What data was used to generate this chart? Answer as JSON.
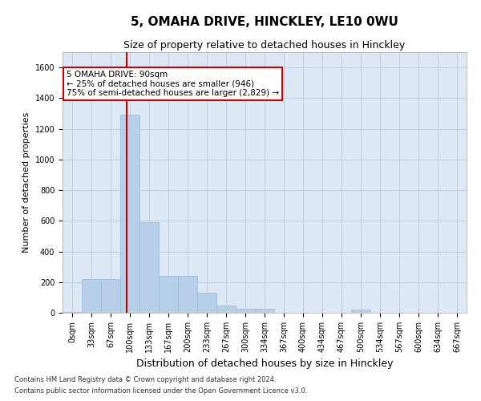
{
  "title": "5, OMAHA DRIVE, HINCKLEY, LE10 0WU",
  "subtitle": "Size of property relative to detached houses in Hinckley",
  "xlabel": "Distribution of detached houses by size in Hinckley",
  "ylabel": "Number of detached properties",
  "bar_color": "#b8cfe8",
  "bar_edge_color": "#9ab8d8",
  "background_color": "#ffffff",
  "plot_bg_color": "#dce8f4",
  "grid_color": "#c0cfe0",
  "categories": [
    "0sqm",
    "33sqm",
    "67sqm",
    "100sqm",
    "133sqm",
    "167sqm",
    "200sqm",
    "233sqm",
    "267sqm",
    "300sqm",
    "334sqm",
    "367sqm",
    "400sqm",
    "434sqm",
    "467sqm",
    "500sqm",
    "534sqm",
    "567sqm",
    "600sqm",
    "634sqm",
    "667sqm"
  ],
  "values": [
    5,
    220,
    220,
    1290,
    590,
    240,
    240,
    130,
    45,
    25,
    25,
    0,
    0,
    0,
    0,
    20,
    0,
    0,
    0,
    0,
    0
  ],
  "ylim": [
    0,
    1700
  ],
  "yticks": [
    0,
    200,
    400,
    600,
    800,
    1000,
    1200,
    1400,
    1600
  ],
  "property_line_x": 2.82,
  "annotation_text": "5 OMAHA DRIVE: 90sqm\n← 25% of detached houses are smaller (946)\n75% of semi-detached houses are larger (2,829) →",
  "annotation_box_color": "#ffffff",
  "annotation_box_edge": "#cc0000",
  "vline_color": "#cc0000",
  "footer_line1": "Contains HM Land Registry data © Crown copyright and database right 2024.",
  "footer_line2": "Contains public sector information licensed under the Open Government Licence v3.0.",
  "title_fontsize": 11,
  "subtitle_fontsize": 9,
  "ylabel_fontsize": 8,
  "xlabel_fontsize": 9,
  "tick_fontsize": 7,
  "annot_fontsize": 7.5,
  "footer_fontsize": 6
}
